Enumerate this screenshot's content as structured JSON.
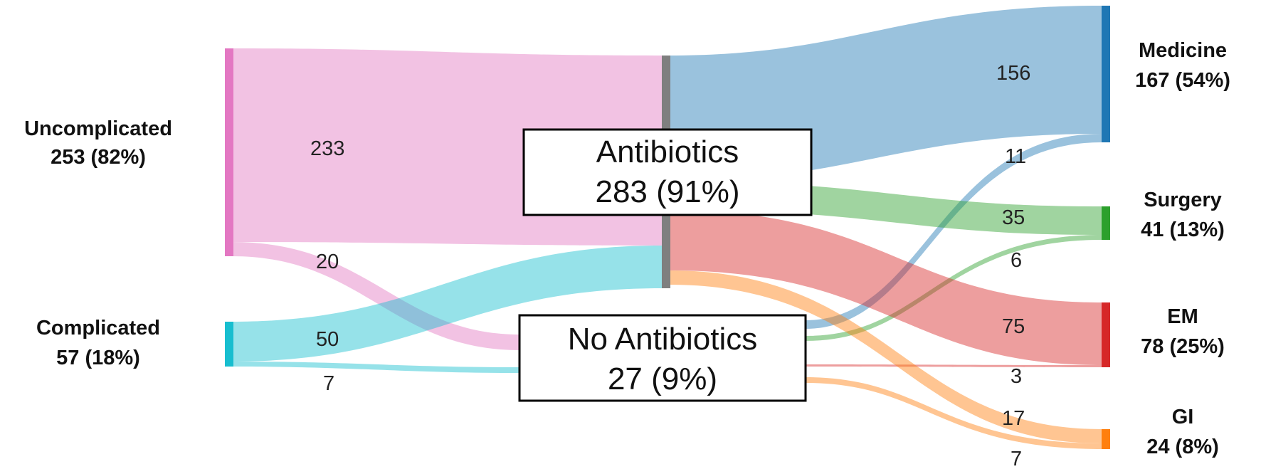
{
  "sankey": {
    "nodes": {
      "uncomplicated": {
        "name": "Uncomplicated",
        "value_label": "253 (82%)",
        "value": 253,
        "percent": 82,
        "color": "#e377c2"
      },
      "complicated": {
        "name": "Complicated",
        "value_label": "57 (18%)",
        "value": 57,
        "percent": 18,
        "color": "#17becf"
      },
      "antibiotics": {
        "name": "Antibiotics",
        "value_label": "283 (91%)",
        "value": 283,
        "percent": 91,
        "color": "#7f7f7f"
      },
      "no_antibiotics": {
        "name": "No Antibiotics",
        "value_label": "27 (9%)",
        "value": 27,
        "percent": 9,
        "color": "#7f7f7f"
      },
      "medicine": {
        "name": "Medicine",
        "value_label": "167 (54%)",
        "value": 167,
        "percent": 54,
        "color": "#1f77b4"
      },
      "surgery": {
        "name": "Surgery",
        "value_label": "41 (13%)",
        "value": 41,
        "percent": 13,
        "color": "#2ca02c"
      },
      "em": {
        "name": "EM",
        "value_label": "78 (25%)",
        "value": 78,
        "percent": 25,
        "color": "#d62728"
      },
      "gi": {
        "name": "GI",
        "value_label": "24 (8%)",
        "value": 24,
        "percent": 8,
        "color": "#ff7f0e"
      }
    },
    "flows": [
      {
        "id": "uncomp-abx",
        "source": "Uncomplicated",
        "target": "Antibiotics",
        "value": 233,
        "label": "233",
        "color": "#e377c2"
      },
      {
        "id": "uncomp-noabx",
        "source": "Uncomplicated",
        "target": "No Antibiotics",
        "value": 20,
        "label": "20",
        "color": "#e377c2"
      },
      {
        "id": "comp-abx",
        "source": "Complicated",
        "target": "Antibiotics",
        "value": 50,
        "label": "50",
        "color": "#17becf"
      },
      {
        "id": "comp-noabx",
        "source": "Complicated",
        "target": "No Antibiotics",
        "value": 7,
        "label": "7",
        "color": "#17becf"
      },
      {
        "id": "abx-medicine",
        "source": "Antibiotics",
        "target": "Medicine",
        "value": 156,
        "label": "156",
        "color": "#1f77b4"
      },
      {
        "id": "noabx-medicine",
        "source": "No Antibiotics",
        "target": "Medicine",
        "value": 11,
        "label": "11",
        "color": "#1f77b4"
      },
      {
        "id": "abx-surgery",
        "source": "Antibiotics",
        "target": "Surgery",
        "value": 35,
        "label": "35",
        "color": "#2ca02c"
      },
      {
        "id": "noabx-surgery",
        "source": "No Antibiotics",
        "target": "Surgery",
        "value": 6,
        "label": "6",
        "color": "#2ca02c"
      },
      {
        "id": "abx-em",
        "source": "Antibiotics",
        "target": "EM",
        "value": 75,
        "label": "75",
        "color": "#d62728"
      },
      {
        "id": "noabx-em",
        "source": "No Antibiotics",
        "target": "EM",
        "value": 3,
        "label": "3",
        "color": "#d62728"
      },
      {
        "id": "abx-gi",
        "source": "Antibiotics",
        "target": "GI",
        "value": 17,
        "label": "17",
        "color": "#ff7f0e"
      },
      {
        "id": "noabx-gi",
        "source": "No Antibiotics",
        "target": "GI",
        "value": 7,
        "label": "7",
        "color": "#ff7f0e"
      }
    ]
  }
}
